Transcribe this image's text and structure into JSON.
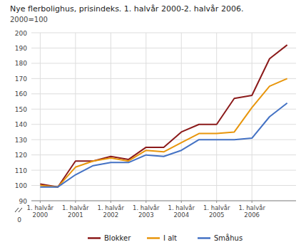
{
  "chart_data": {
    "type": "line",
    "title": "Nye flerbolighus, prisindeks. 1. halvår 2000-2. halvår 2006.",
    "subtitle": "2000=100",
    "categories": [
      "1. halvår\n2000",
      null,
      "1. halvår\n2001",
      null,
      "1. halvår\n2002",
      null,
      "1. halvår\n2003",
      null,
      "1. halvår\n2004",
      null,
      "1. halvår\n2005",
      null,
      "1. halvår\n2006",
      null,
      null
    ],
    "series": [
      {
        "name": "Blokker",
        "color": "#8B1A1A",
        "values": [
          101,
          99,
          116,
          116,
          119,
          117,
          125,
          125,
          135,
          140,
          140,
          157,
          159,
          183,
          192
        ]
      },
      {
        "name": "I alt",
        "color": "#E8960C",
        "values": [
          100,
          99,
          112,
          116,
          118,
          116,
          123,
          122,
          128,
          134,
          134,
          135,
          151,
          165,
          170
        ]
      },
      {
        "name": "Småhus",
        "color": "#4472C4",
        "values": [
          99,
          99,
          107,
          113,
          115,
          115,
          120,
          119,
          123,
          130,
          130,
          130,
          131,
          145,
          154
        ]
      }
    ],
    "ylim": [
      90,
      200
    ],
    "yticks": [
      90,
      100,
      110,
      120,
      130,
      140,
      150,
      160,
      170,
      180,
      190,
      200
    ],
    "annotations": [
      {
        "text": "0"
      }
    ],
    "grid": true,
    "legend": "bottom"
  }
}
